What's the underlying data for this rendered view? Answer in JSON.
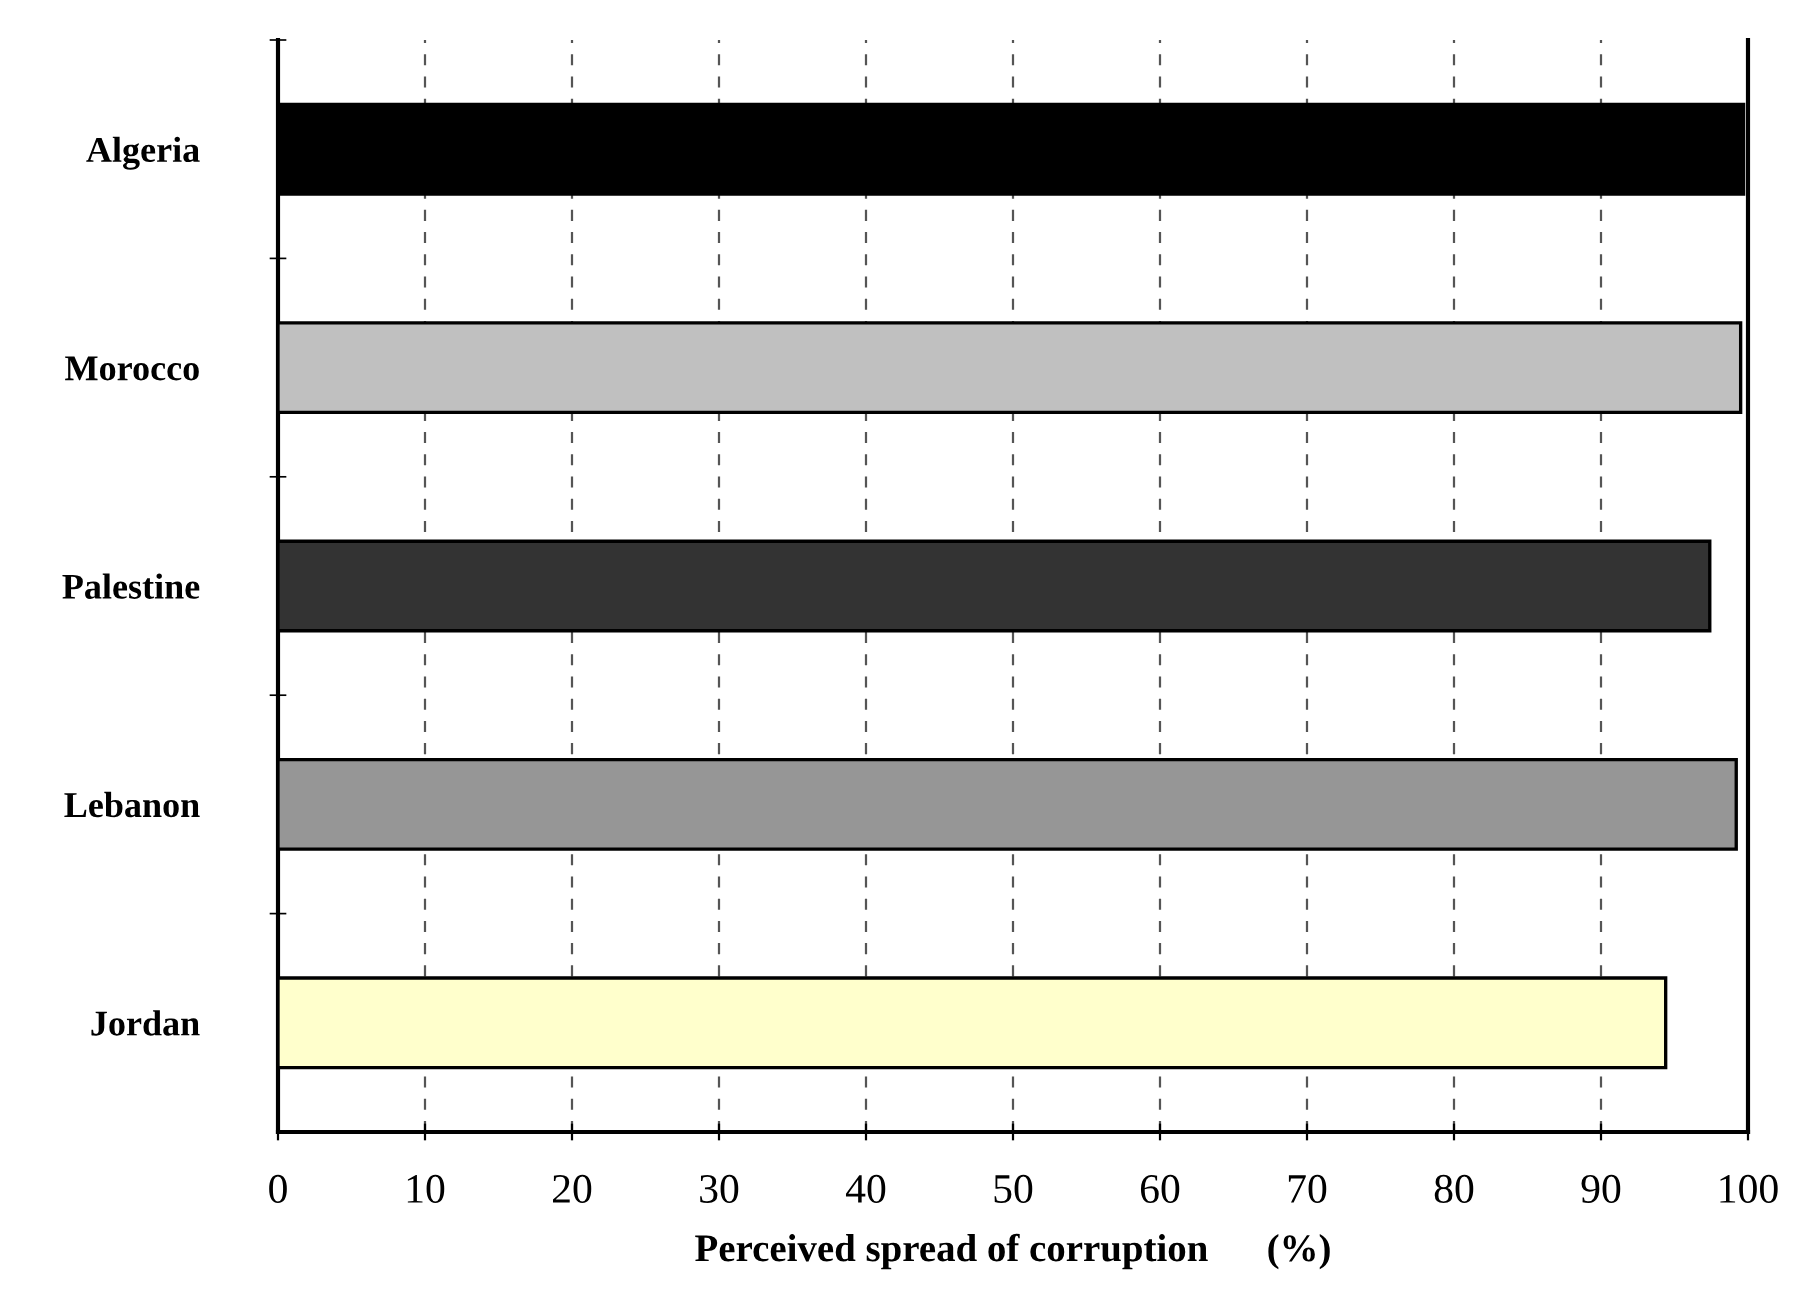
{
  "chart_data": {
    "type": "bar",
    "orientation": "horizontal",
    "xlabel": "Perceived spread of corruption      (%)",
    "categories": [
      "Algeria",
      "Morocco",
      "Palestine",
      "Lebanon",
      "Jordan"
    ],
    "values": [
      99.7,
      99.5,
      97.4,
      99.2,
      94.4
    ],
    "colors": [
      "#000000",
      "#c0c0c0",
      "#333333",
      "#969696",
      "#ffffcc"
    ],
    "xlim": [
      0,
      100
    ],
    "xticks": [
      0,
      10,
      20,
      30,
      40,
      50,
      60,
      70,
      80,
      90,
      100
    ],
    "grid": "x",
    "legend": false
  }
}
